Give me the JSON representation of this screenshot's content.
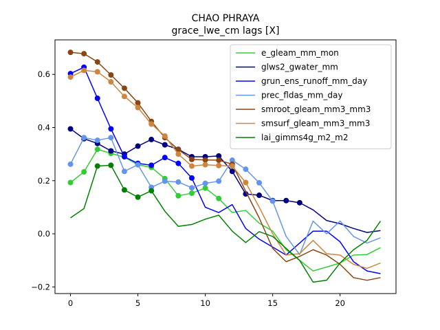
{
  "chart_data": {
    "type": "line",
    "title": "CHAO PHRAYA",
    "subtitle": "grace_lwe_cm lags [X]",
    "xlabel": "",
    "ylabel": "",
    "xlim": [
      -1.15,
      24.15
    ],
    "ylim": [
      -0.225,
      0.73
    ],
    "xticks": [
      0,
      5,
      10,
      15,
      20
    ],
    "yticks": [
      -0.2,
      0.0,
      0.2,
      0.4,
      0.6
    ],
    "ytick_labels": [
      "−0.2",
      "0.0",
      "0.2",
      "0.4",
      "0.6"
    ],
    "grid": false,
    "legend_position": "top-right",
    "x": [
      0,
      1,
      2,
      3,
      4,
      5,
      6,
      7,
      8,
      9,
      10,
      11,
      12,
      13,
      14,
      15,
      16,
      17,
      18,
      19,
      20,
      21,
      22,
      23
    ],
    "series": [
      {
        "name": "e_gleam_mm_mon",
        "color": "#32cd32",
        "values": [
          0.193,
          0.233,
          0.318,
          0.303,
          0.288,
          0.26,
          0.25,
          0.208,
          0.143,
          0.153,
          0.172,
          0.133,
          0.08,
          0.088,
          0.04,
          0.01,
          -0.06,
          -0.1,
          -0.14,
          -0.125,
          -0.11,
          -0.08,
          -0.078,
          -0.052
        ],
        "marked": [
          0,
          1,
          2,
          3,
          5,
          6,
          7,
          8,
          9,
          10,
          11
        ]
      },
      {
        "name": "glws2_gwater_mm",
        "color": "#000080",
        "values": [
          0.395,
          0.358,
          0.34,
          0.312,
          0.3,
          0.33,
          0.355,
          0.335,
          0.318,
          0.29,
          0.29,
          0.293,
          0.235,
          0.15,
          0.145,
          0.125,
          0.125,
          0.117,
          0.09,
          0.05,
          0.038,
          0.02,
          0.005,
          0.012
        ],
        "marked": [
          0,
          1,
          2,
          3,
          4,
          5,
          6,
          7,
          8,
          9,
          10,
          11,
          12,
          13,
          14,
          15,
          16,
          17
        ]
      },
      {
        "name": "grun_ens_runoff_mm_day",
        "color": "#0000ff",
        "values": [
          0.603,
          0.627,
          0.51,
          0.395,
          0.29,
          0.265,
          0.258,
          0.287,
          0.265,
          0.21,
          0.1,
          0.08,
          0.11,
          0.02,
          -0.02,
          -0.05,
          -0.08,
          -0.035,
          0.01,
          0.01,
          -0.03,
          -0.105,
          -0.14,
          -0.15
        ],
        "marked": [
          0,
          1,
          2,
          3,
          4,
          5,
          6,
          7,
          8,
          9
        ]
      },
      {
        "name": "prec_fldas_mm_day",
        "color": "#6495ed",
        "values": [
          0.262,
          0.362,
          0.352,
          0.362,
          0.235,
          0.26,
          0.175,
          0.198,
          0.195,
          0.173,
          0.19,
          0.198,
          0.277,
          0.243,
          0.192,
          0.123,
          -0.01,
          -0.078,
          0.048,
          0.0,
          0.048,
          -0.01,
          -0.035,
          -0.015
        ],
        "marked": [
          0,
          1,
          2,
          3,
          4,
          5,
          6,
          7,
          8,
          9,
          10,
          11,
          12,
          13,
          14,
          15
        ]
      },
      {
        "name": "smroot_gleam_mm3_mm3",
        "color": "#8b4513",
        "values": [
          0.683,
          0.678,
          0.647,
          0.598,
          0.548,
          0.493,
          0.423,
          0.362,
          0.317,
          0.28,
          0.278,
          0.277,
          0.262,
          0.16,
          0.06,
          -0.055,
          -0.105,
          -0.085,
          -0.06,
          -0.08,
          -0.115,
          -0.165,
          -0.175,
          -0.165
        ],
        "marked": [
          0,
          1,
          2,
          3,
          4,
          5,
          6,
          7,
          8,
          9,
          10,
          11,
          12
        ]
      },
      {
        "name": "smsurf_gleam_mm3_mm3",
        "color": "#cd853f",
        "values": [
          0.59,
          0.615,
          0.61,
          0.572,
          0.517,
          0.475,
          0.413,
          0.368,
          0.3,
          0.255,
          0.26,
          0.257,
          0.255,
          0.193,
          0.1,
          0.0,
          -0.08,
          -0.075,
          -0.025,
          -0.075,
          -0.08,
          -0.115,
          -0.13,
          -0.11
        ],
        "marked": [
          0,
          1,
          2,
          3,
          4,
          5,
          6,
          7,
          8,
          9,
          10,
          11,
          12,
          13
        ]
      },
      {
        "name": "lai_gimms4g_m2_m2",
        "color": "#008000",
        "values": [
          0.06,
          0.095,
          0.255,
          0.258,
          0.165,
          0.138,
          0.162,
          0.085,
          0.028,
          0.035,
          0.055,
          0.07,
          0.01,
          -0.033,
          0.008,
          -0.01,
          -0.055,
          -0.1,
          -0.182,
          -0.175,
          -0.11,
          -0.06,
          -0.025,
          0.048
        ],
        "marked": [
          2,
          3,
          4,
          5,
          6
        ]
      }
    ]
  }
}
